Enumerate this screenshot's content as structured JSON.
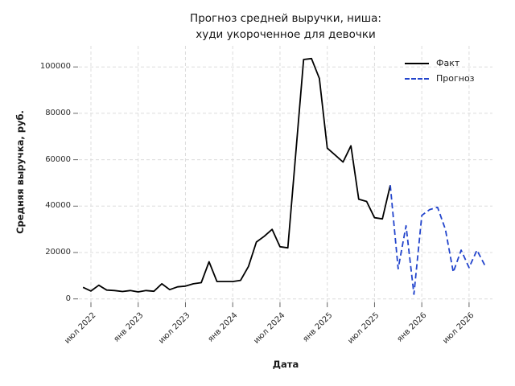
{
  "title": {
    "line1": "Прогноз средней выручки, ниша:",
    "line2": "худи укороченное для девочки"
  },
  "axes": {
    "x_label": "Дата",
    "y_label": "Средняя выручка, руб."
  },
  "legend": {
    "items": [
      {
        "label": "Факт",
        "color": "#000000",
        "style": "solid"
      },
      {
        "label": "Прогноз",
        "color": "#2244cc",
        "style": "dashed"
      }
    ]
  },
  "colors": {
    "fact_line": "#000000",
    "forecast_line": "#2244cc",
    "grid": "#dcdcdc",
    "tick": "#666666"
  },
  "chart_data": {
    "type": "line",
    "title": "Прогноз средней выручки, ниша: худи укороченное для девочки",
    "xlabel": "Дата",
    "ylabel": "Средняя выручка, руб.",
    "ylim": [
      0,
      108000
    ],
    "grid": {
      "show": true,
      "style": "dashed"
    },
    "legend_position": "upper-right",
    "y_ticks": [
      0,
      20000,
      40000,
      60000,
      80000,
      100000
    ],
    "x_ticks": [
      {
        "month": "2022-07",
        "label": "июл 2022"
      },
      {
        "month": "2023-01",
        "label": "янв 2023"
      },
      {
        "month": "2023-07",
        "label": "июл 2023"
      },
      {
        "month": "2024-01",
        "label": "янв 2024"
      },
      {
        "month": "2024-07",
        "label": "июл 2024"
      },
      {
        "month": "2025-01",
        "label": "янв 2025"
      },
      {
        "month": "2025-07",
        "label": "июл 2025"
      },
      {
        "month": "2026-01",
        "label": "янв 2026"
      },
      {
        "month": "2026-07",
        "label": "июл 2026"
      }
    ],
    "series": [
      {
        "name": "Факт",
        "color": "#000000",
        "line_style": "solid",
        "months": [
          "2022-06",
          "2022-07",
          "2022-08",
          "2022-09",
          "2022-10",
          "2022-11",
          "2022-12",
          "2023-01",
          "2023-02",
          "2023-03",
          "2023-04",
          "2023-05",
          "2023-06",
          "2023-07",
          "2023-08",
          "2023-09",
          "2023-10",
          "2023-11",
          "2023-12",
          "2024-01",
          "2024-02",
          "2024-03",
          "2024-04",
          "2024-05",
          "2024-06",
          "2024-07",
          "2024-08",
          "2024-09",
          "2024-10",
          "2024-11",
          "2024-12",
          "2025-01",
          "2025-02",
          "2025-03",
          "2025-04",
          "2025-05",
          "2025-06",
          "2025-07",
          "2025-08",
          "2025-09"
        ],
        "values": [
          5000,
          3400,
          5900,
          3800,
          3600,
          3200,
          3600,
          3000,
          3600,
          3300,
          6500,
          4000,
          5200,
          5500,
          6500,
          7000,
          16000,
          7500,
          7500,
          7500,
          8000,
          14000,
          24500,
          27000,
          30000,
          22500,
          22000,
          62500,
          103200,
          103600,
          95000,
          65000,
          62000,
          59000,
          66000,
          43000,
          42000,
          35000,
          34500,
          49000
        ]
      },
      {
        "name": "Прогноз",
        "color": "#2244cc",
        "line_style": "dashed",
        "months": [
          "2025-09",
          "2025-10",
          "2025-11",
          "2025-12",
          "2026-01",
          "2026-02",
          "2026-03",
          "2026-04",
          "2026-05",
          "2026-06",
          "2026-07",
          "2026-08",
          "2026-09"
        ],
        "values": [
          49000,
          13000,
          31500,
          2000,
          36000,
          38500,
          39500,
          30000,
          11500,
          21000,
          13500,
          21000,
          14500
        ]
      }
    ]
  }
}
